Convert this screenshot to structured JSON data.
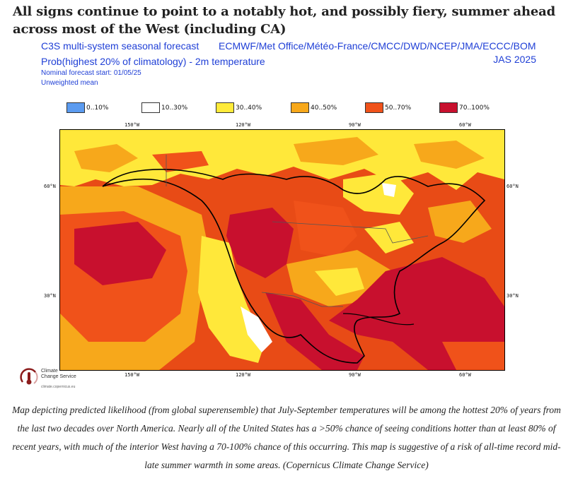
{
  "headline": "All signs continue to point to a notably hot, and possibly fiery, summer ahead across most of the West (including CA)",
  "figure": {
    "title_left": "C3S multi-system seasonal forecast",
    "title_right": "ECMWF/Met Office/Météo-France/CMCC/DWD/NCEP/JMA/ECCC/BOM",
    "subtitle": "Prob(highest 20% of climatology) - 2m temperature",
    "period": "JAS 2025",
    "forecast_start": "Nominal forecast start: 01/05/25",
    "method": "Unweighted mean",
    "legend": [
      {
        "label": "0..10%",
        "color": "#5b9bf0"
      },
      {
        "label": "10..30%",
        "color": "#ffffff"
      },
      {
        "label": "30..40%",
        "color": "#ffeb3a"
      },
      {
        "label": "40..50%",
        "color": "#f7a81b"
      },
      {
        "label": "50..70%",
        "color": "#f0521a"
      },
      {
        "label": "70..100%",
        "color": "#c8102e"
      }
    ],
    "lon_labels": [
      "150°W",
      "120°W",
      "90°W",
      "60°W"
    ],
    "lat_labels": [
      "60°N",
      "30°N"
    ]
  },
  "logo": {
    "name_line1": "Climate",
    "name_line2": "Change Service",
    "url": "climate.copernicus.eu"
  },
  "caption": "Map depicting predicted likelihood (from global superensemble) that July-September temperatures will be among the hottest 20% of years from the last two decades over North America. Nearly all of the United States has a >50% chance of seeing conditions hotter than at least 80% of recent years, with much of the interior West having a 70-100% chance of this occurring. This map is suggestive of a risk of all-time record mid-late summer warmth in some areas. (Copernicus Climate Change Service)"
}
